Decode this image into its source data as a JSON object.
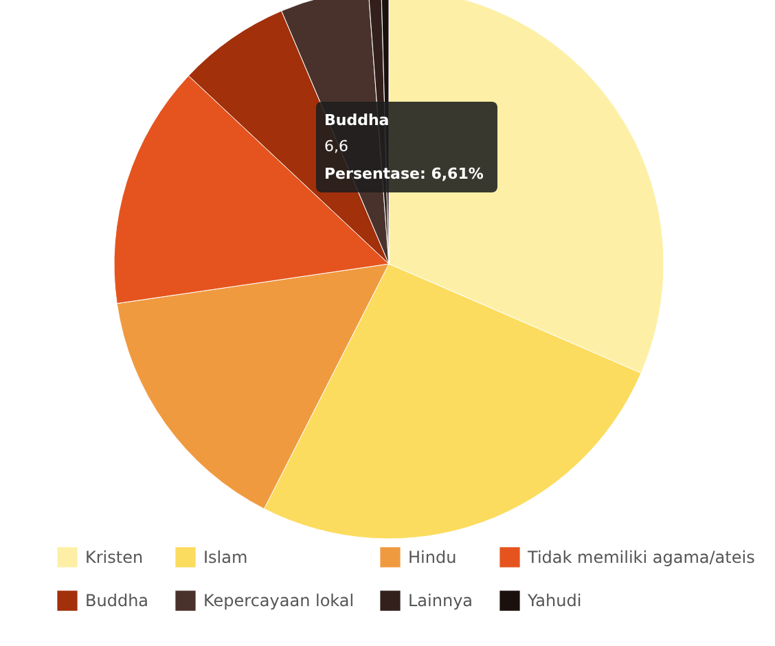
{
  "chart_data": {
    "type": "pie",
    "categories": [
      "Kristen",
      "Islam",
      "Hindu",
      "Tidak memiliki agama/ateis",
      "Buddha",
      "Kepercayaan lokal",
      "Lainnya",
      "Yahudi"
    ],
    "values": [
      31.5,
      26.0,
      15.2,
      14.3,
      6.61,
      5.2,
      0.75,
      0.44
    ],
    "colors": [
      "#fdf0a6",
      "#fcdc5e",
      "#f09a40",
      "#e5541e",
      "#a1300b",
      "#4a322c",
      "#33201c",
      "#1a110e"
    ],
    "legend": "bottom",
    "annotations": [
      "Buddha",
      "6,6",
      "Persentase: 6,61%"
    ]
  }
}
